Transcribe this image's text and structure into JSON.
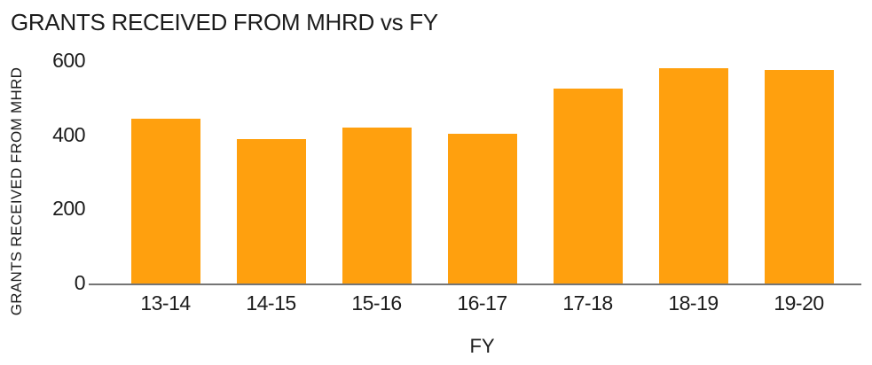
{
  "chart_data": {
    "type": "bar",
    "title": "GRANTS RECEIVED FROM MHRD vs FY",
    "xlabel": "FY",
    "ylabel": "GRANTS RECEIVED FROM MHRD",
    "categories": [
      "13-14",
      "14-15",
      "15-16",
      "16-17",
      "17-18",
      "18-19",
      "19-20"
    ],
    "values": [
      445,
      390,
      420,
      405,
      525,
      580,
      575
    ],
    "yticks": [
      0,
      200,
      400,
      600
    ],
    "ylim": [
      0,
      600
    ],
    "grid": false,
    "legend": "none",
    "colors": {
      "bar": "#FFA00E",
      "axis_line": "#757575",
      "text": "#1C1C1C",
      "background": "#FFFFFF"
    }
  }
}
